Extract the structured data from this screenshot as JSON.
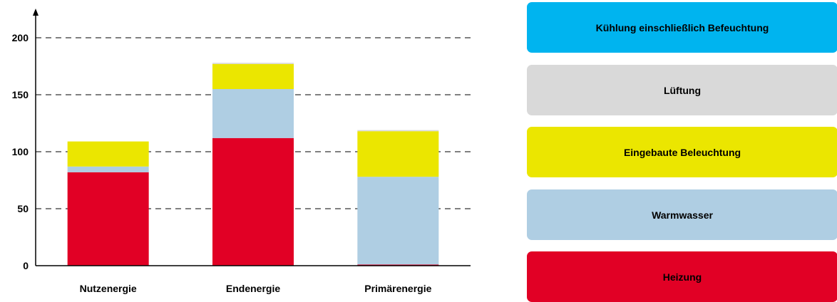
{
  "chart_data": {
    "type": "bar",
    "stacked": true,
    "categories": [
      "Nutzenergie",
      "Endenergie",
      "Primärenergie"
    ],
    "series": [
      {
        "name": "Heizung",
        "color": "#e10025",
        "values": [
          82,
          112,
          1
        ]
      },
      {
        "name": "Warmwasser",
        "color": "#afcee3",
        "values": [
          5,
          43,
          77
        ]
      },
      {
        "name": "Eingebaute Beleuchtung",
        "color": "#ebe600",
        "values": [
          22,
          22,
          40
        ]
      },
      {
        "name": "Lüftung",
        "color": "#d9d9d9",
        "values": [
          0,
          1,
          1
        ]
      },
      {
        "name": "Kühlung einschließlich Befeuchtung",
        "color": "#00b4ef",
        "values": [
          0,
          0,
          0
        ]
      }
    ],
    "yticks": [
      0,
      50,
      100,
      150,
      200
    ],
    "ylim": [
      0,
      220
    ],
    "grid": true,
    "legend_position": "right"
  },
  "legend": {
    "items": [
      {
        "label": "Kühlung einschließlich Befeuchtung",
        "color": "#00b4ef"
      },
      {
        "label": "Lüftung",
        "color": "#d9d9d9"
      },
      {
        "label": "Eingebaute Beleuchtung",
        "color": "#ebe600"
      },
      {
        "label": "Warmwasser",
        "color": "#afcee3"
      },
      {
        "label": "Heizung",
        "color": "#e10025"
      }
    ]
  }
}
